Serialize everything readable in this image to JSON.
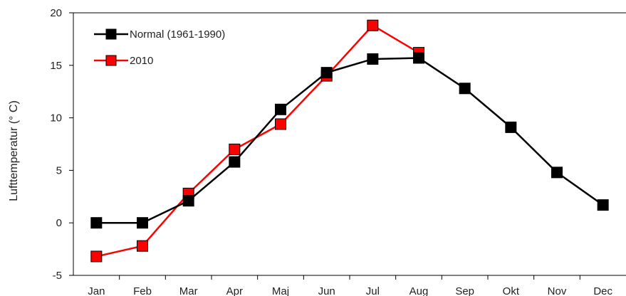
{
  "chart_data": {
    "type": "line",
    "categories": [
      "Jan",
      "Feb",
      "Mar",
      "Apr",
      "Maj",
      "Jun",
      "Jul",
      "Aug",
      "Sep",
      "Okt",
      "Nov",
      "Dec"
    ],
    "ylabel": "Lufttemperatur (° C)",
    "xlabel": "",
    "title": "",
    "ylim": [
      -5,
      20
    ],
    "yticks": [
      -5,
      0,
      5,
      10,
      15,
      20
    ],
    "grid": false,
    "legend_position": "top-left",
    "series": [
      {
        "name": "Normal (1961-1990)",
        "color": "#000000",
        "marker_fill": "#000000",
        "values": [
          0.0,
          0.0,
          2.1,
          5.8,
          10.8,
          14.3,
          15.6,
          15.7,
          12.8,
          9.1,
          4.8,
          1.7
        ]
      },
      {
        "name": "2010",
        "color": "#ff0000",
        "marker_fill": "#ff0000",
        "values": [
          -3.2,
          -2.2,
          2.8,
          7.0,
          9.4,
          14.0,
          18.8,
          16.2,
          null,
          null,
          null,
          null
        ]
      }
    ]
  }
}
